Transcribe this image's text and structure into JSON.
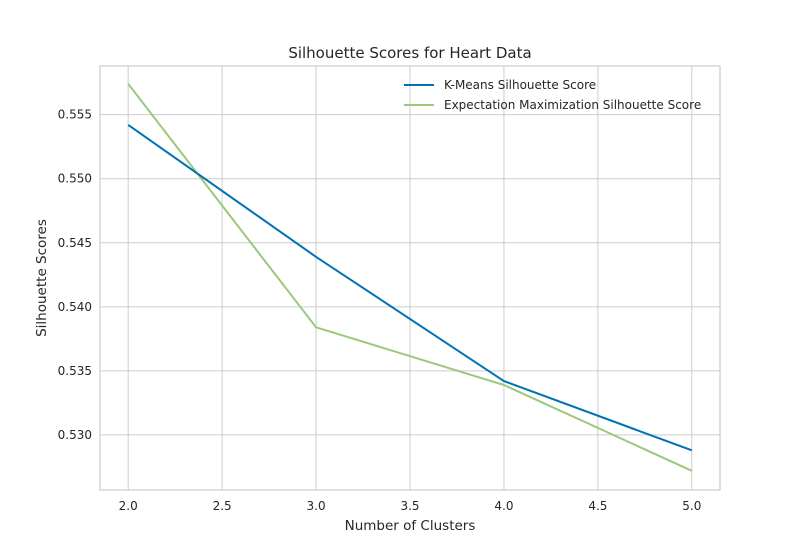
{
  "chart_data": {
    "type": "line",
    "title": "Silhouette Scores for Heart Data",
    "xlabel": "Number of Clusters",
    "ylabel": "Silhouette Scores",
    "xlim": [
      1.85,
      5.15
    ],
    "ylim": [
      0.5257,
      0.5588
    ],
    "x_ticks": [
      2.0,
      2.5,
      3.0,
      3.5,
      4.0,
      4.5,
      5.0
    ],
    "x_tick_labels": [
      "2.0",
      "2.5",
      "3.0",
      "3.5",
      "4.0",
      "4.5",
      "5.0"
    ],
    "y_ticks": [
      0.53,
      0.535,
      0.54,
      0.545,
      0.55,
      0.555
    ],
    "y_tick_labels": [
      "0.530",
      "0.535",
      "0.540",
      "0.545",
      "0.550",
      "0.555"
    ],
    "grid": true,
    "legend_position": "top-right",
    "x": [
      2,
      3,
      4,
      5
    ],
    "series": [
      {
        "name": "K-Means Silhouette Score",
        "color": "#0072b2",
        "values": [
          0.5542,
          0.5439,
          0.5342,
          0.5288
        ]
      },
      {
        "name": "Expectation Maximization Silhouette Score",
        "color": "#9bc87a",
        "values": [
          0.5574,
          0.5384,
          0.5339,
          0.5272
        ]
      }
    ]
  }
}
